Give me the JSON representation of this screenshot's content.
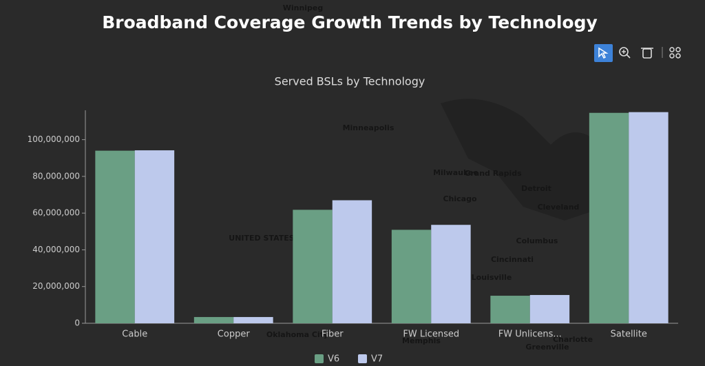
{
  "chart_data": {
    "type": "bar",
    "title": "Broadband Coverage Growth Trends by Technology",
    "subtitle": "Served BSLs by Technology",
    "categories": [
      "Cable",
      "Copper",
      "Fiber",
      "FW Licensed",
      "FW Unlicens...",
      "Satellite"
    ],
    "series": [
      {
        "name": "V6",
        "color": "#6a9f84",
        "values": [
          94000000,
          3400000,
          61800000,
          50900000,
          15000000,
          114600000
        ]
      },
      {
        "name": "V7",
        "color": "#bdc9ec",
        "values": [
          94200000,
          3400000,
          67000000,
          53600000,
          15400000,
          115000000
        ]
      }
    ],
    "ylim": [
      0,
      116000000
    ],
    "yticks": [
      0,
      {
        "value": 20000000,
        "label": "20,000,000"
      },
      {
        "value": 40000000,
        "label": "40,000,000"
      },
      {
        "value": 60000000,
        "label": "60,000,000"
      },
      {
        "value": 80000000,
        "label": "80,000,000"
      },
      {
        "value": 100000000,
        "label": "100,000,000"
      }
    ],
    "grid": false,
    "legend": "bottom"
  },
  "map_labels": [
    "Winnipeg",
    "Minneapolis",
    "Milwaukee",
    "Grand Rapids",
    "Detroit",
    "Chicago",
    "Cleveland",
    "Columbus",
    "Cincinnati",
    "Louisville",
    "Memphis",
    "Charlotte",
    "Greenville",
    "Oklahoma City",
    "UNITED STATES"
  ]
}
